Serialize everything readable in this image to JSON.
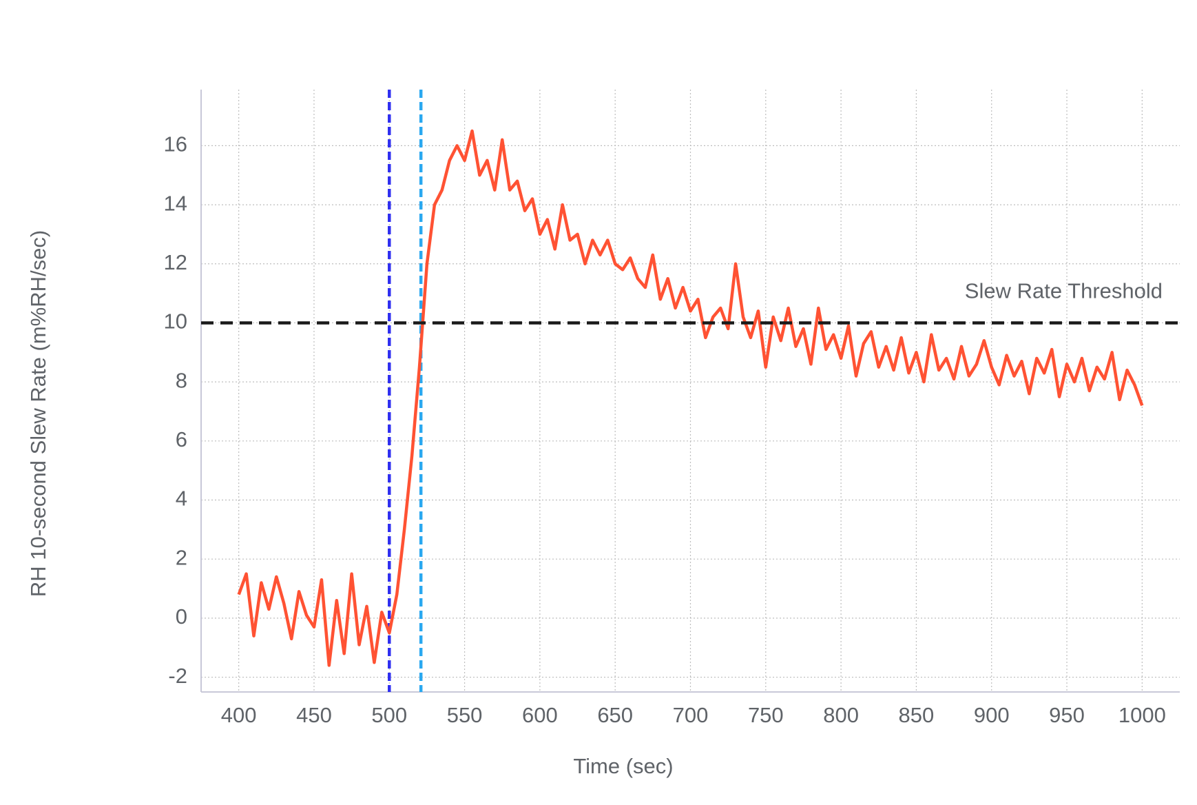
{
  "chart_data": {
    "type": "line",
    "x_label": "Time (sec)",
    "y_label": "RH 10-second Slew Rate (m%RH/sec)",
    "x": [
      400,
      405,
      410,
      415,
      420,
      425,
      430,
      435,
      440,
      445,
      450,
      455,
      460,
      465,
      470,
      475,
      480,
      485,
      490,
      495,
      500,
      505,
      510,
      515,
      520,
      525,
      530,
      535,
      540,
      545,
      550,
      555,
      560,
      565,
      570,
      575,
      580,
      585,
      590,
      595,
      600,
      605,
      610,
      615,
      620,
      625,
      630,
      635,
      640,
      645,
      650,
      655,
      660,
      665,
      670,
      675,
      680,
      685,
      690,
      695,
      700,
      705,
      710,
      715,
      720,
      725,
      730,
      735,
      740,
      745,
      750,
      755,
      760,
      765,
      770,
      775,
      780,
      785,
      790,
      795,
      800,
      805,
      810,
      815,
      820,
      825,
      830,
      835,
      840,
      845,
      850,
      855,
      860,
      865,
      870,
      875,
      880,
      885,
      890,
      895,
      900,
      905,
      910,
      915,
      920,
      925,
      930,
      935,
      940,
      945,
      950,
      955,
      960,
      965,
      970,
      975,
      980,
      985,
      990,
      995,
      1000
    ],
    "series": [
      {
        "color": "#ff5233",
        "values": [
          0.8,
          1.5,
          -0.6,
          1.2,
          0.3,
          1.4,
          0.5,
          -0.7,
          0.9,
          0.1,
          -0.3,
          1.3,
          -1.6,
          0.6,
          -1.2,
          1.5,
          -0.9,
          0.4,
          -1.5,
          0.2,
          -0.5,
          0.8,
          3,
          5.5,
          8.5,
          12,
          14,
          14.5,
          15.5,
          16,
          15.5,
          16.5,
          15,
          15.5,
          14.5,
          16.2,
          14.5,
          14.8,
          13.8,
          14.2,
          13,
          13.5,
          12.5,
          14,
          12.8,
          13,
          12,
          12.8,
          12.3,
          12.8,
          12,
          11.8,
          12.2,
          11.5,
          11.2,
          12.3,
          10.8,
          11.5,
          10.5,
          11.2,
          10.4,
          10.8,
          9.5,
          10.2,
          10.5,
          9.8,
          12,
          10.2,
          9.5,
          10.4,
          8.5,
          10.2,
          9.4,
          10.5,
          9.2,
          9.8,
          8.6,
          10.5,
          9.1,
          9.6,
          8.8,
          9.9,
          8.2,
          9.3,
          9.7,
          8.5,
          9.2,
          8.4,
          9.5,
          8.3,
          9,
          8,
          9.6,
          8.4,
          8.8,
          8.1,
          9.2,
          8.2,
          8.6,
          9.4,
          8.5,
          7.9,
          8.9,
          8.2,
          8.7,
          7.6,
          8.8,
          8.3,
          9.1,
          7.5,
          8.6,
          8,
          8.8,
          7.7,
          8.5,
          8.1,
          9,
          7.4,
          8.4,
          7.9,
          7.2
        ]
      }
    ],
    "vlines": [
      {
        "x": 500,
        "color": "#2f2ff0"
      },
      {
        "x": 521,
        "color": "#2aa8f0"
      }
    ],
    "hline": {
      "y": 10,
      "label": "Slew Rate Threshold",
      "color": "#1a1a1a"
    },
    "xlim": [
      375,
      1025
    ],
    "ylim": [
      -2.5,
      17.9
    ],
    "xticks": [
      400,
      450,
      500,
      550,
      600,
      650,
      700,
      750,
      800,
      850,
      900,
      950,
      1000
    ],
    "yticks": [
      -2,
      0,
      2,
      4,
      6,
      8,
      10,
      12,
      14,
      16
    ],
    "grid": true
  }
}
